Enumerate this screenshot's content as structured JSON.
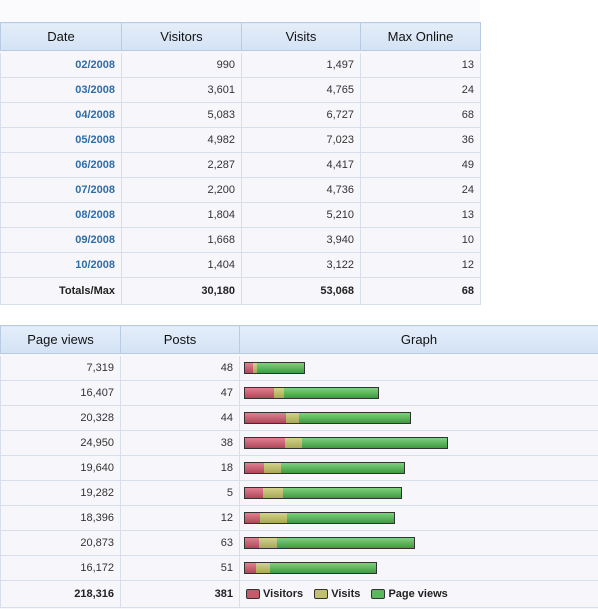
{
  "top_table": {
    "headers": [
      "Date",
      "Visitors",
      "Visits",
      "Max Online"
    ],
    "rows": [
      {
        "date": "02/2008",
        "visitors": "990",
        "visits": "1,497",
        "max_online": "13"
      },
      {
        "date": "03/2008",
        "visitors": "3,601",
        "visits": "4,765",
        "max_online": "24"
      },
      {
        "date": "04/2008",
        "visitors": "5,083",
        "visits": "6,727",
        "max_online": "68"
      },
      {
        "date": "05/2008",
        "visitors": "4,982",
        "visits": "7,023",
        "max_online": "36"
      },
      {
        "date": "06/2008",
        "visitors": "2,287",
        "visits": "4,417",
        "max_online": "49"
      },
      {
        "date": "07/2008",
        "visitors": "2,200",
        "visits": "4,736",
        "max_online": "24"
      },
      {
        "date": "08/2008",
        "visitors": "1,804",
        "visits": "5,210",
        "max_online": "13"
      },
      {
        "date": "09/2008",
        "visitors": "1,668",
        "visits": "3,940",
        "max_online": "10"
      },
      {
        "date": "10/2008",
        "visitors": "1,404",
        "visits": "3,122",
        "max_online": "12"
      }
    ],
    "totals": {
      "label": "Totals/Max",
      "visitors": "30,180",
      "visits": "53,068",
      "max_online": "68"
    }
  },
  "bottom_table": {
    "headers": [
      "Page views",
      "Posts",
      "Graph"
    ],
    "rows": [
      {
        "page_views": "7,319",
        "posts": "48"
      },
      {
        "page_views": "16,407",
        "posts": "47"
      },
      {
        "page_views": "20,328",
        "posts": "44"
      },
      {
        "page_views": "24,950",
        "posts": "38"
      },
      {
        "page_views": "19,640",
        "posts": "18"
      },
      {
        "page_views": "19,282",
        "posts": "5"
      },
      {
        "page_views": "18,396",
        "posts": "12"
      },
      {
        "page_views": "20,873",
        "posts": "63"
      },
      {
        "page_views": "16,172",
        "posts": "51"
      }
    ],
    "totals": {
      "page_views": "218,316",
      "posts": "381"
    },
    "legend": {
      "visitors": "Visitors",
      "visits": "Visits",
      "page_views": "Page views"
    }
  },
  "colors": {
    "visitors": "#c65b6c",
    "visits": "#c0c070",
    "page_views": "#5cb85c",
    "date_link": "#2f6da8",
    "header_bg": "#d3e2f4"
  }
}
